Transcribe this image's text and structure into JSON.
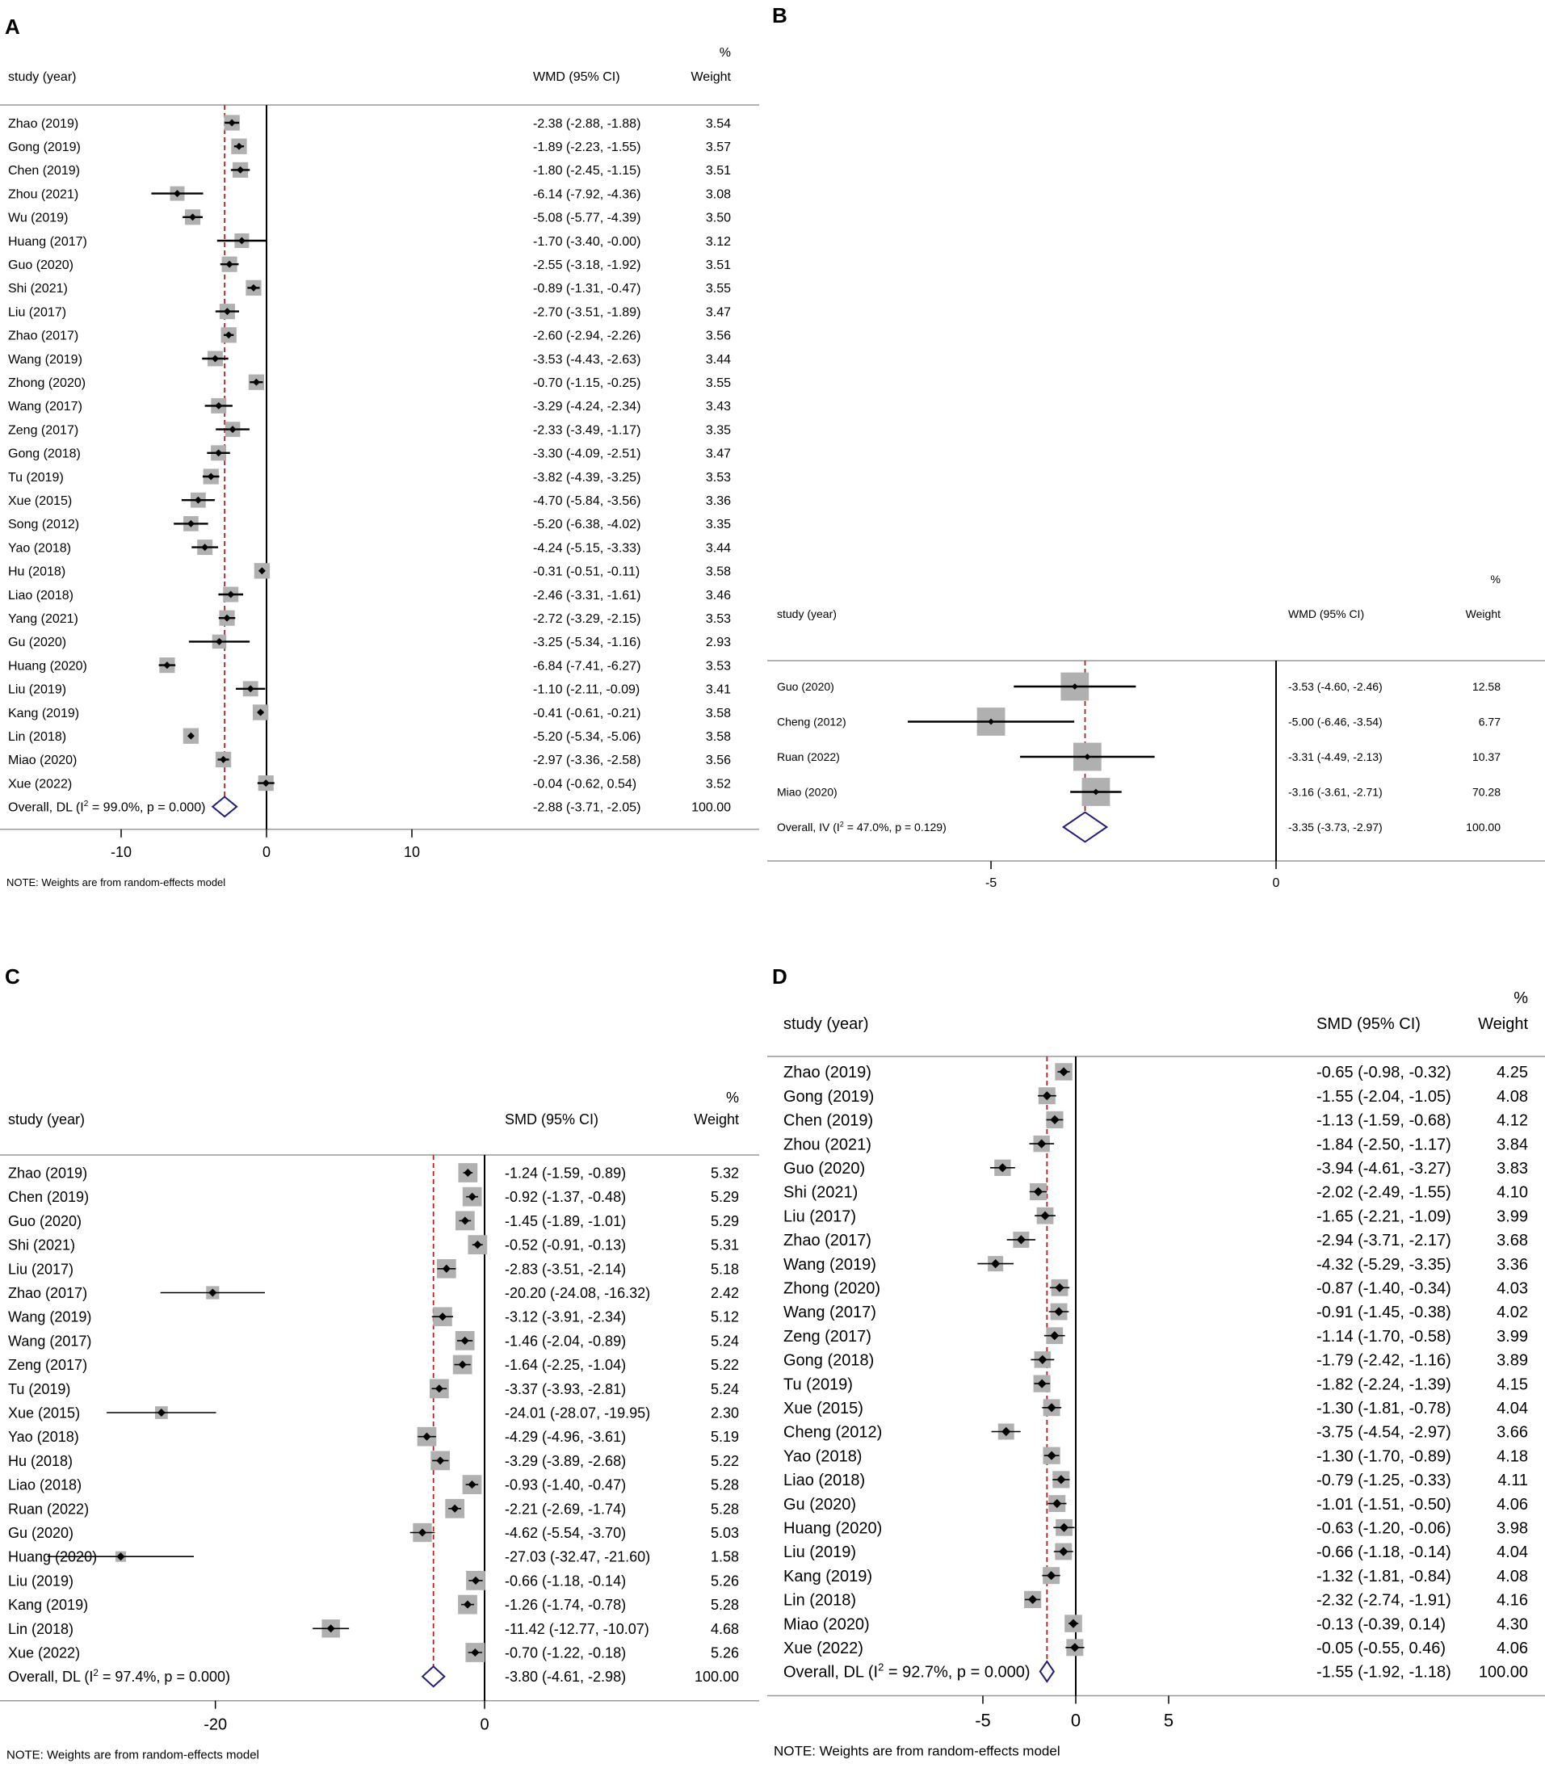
{
  "chart_data": [
    {
      "type": "forest",
      "panel_label": "A",
      "col_study": "study (year)",
      "col_effect": "WMD (95% CI)",
      "col_weight_pct": "%",
      "col_weight": "Weight",
      "note": "NOTE: Weights are from random-effects model",
      "xlim": [
        -17,
        17
      ],
      "xticks": [
        -10,
        0,
        10
      ],
      "xtick_labels": [
        "-10",
        "0",
        "10"
      ],
      "studies": [
        {
          "name": "Zhao (2019)",
          "est": -2.38,
          "lo": -2.88,
          "hi": -1.88,
          "ci": "-2.38 (-2.88, -1.88)",
          "weight": "3.54"
        },
        {
          "name": "Gong (2019)",
          "est": -1.89,
          "lo": -2.23,
          "hi": -1.55,
          "ci": "-1.89 (-2.23, -1.55)",
          "weight": "3.57"
        },
        {
          "name": "Chen (2019)",
          "est": -1.8,
          "lo": -2.45,
          "hi": -1.15,
          "ci": "-1.80 (-2.45, -1.15)",
          "weight": "3.51"
        },
        {
          "name": "Zhou (2021)",
          "est": -6.14,
          "lo": -7.92,
          "hi": -4.36,
          "ci": "-6.14 (-7.92, -4.36)",
          "weight": "3.08"
        },
        {
          "name": "Wu (2019)",
          "est": -5.08,
          "lo": -5.77,
          "hi": -4.39,
          "ci": "-5.08 (-5.77, -4.39)",
          "weight": "3.50"
        },
        {
          "name": "Huang (2017)",
          "est": -1.7,
          "lo": -3.4,
          "hi": -0.0,
          "ci": "-1.70 (-3.40, -0.00)",
          "weight": "3.12"
        },
        {
          "name": "Guo (2020)",
          "est": -2.55,
          "lo": -3.18,
          "hi": -1.92,
          "ci": "-2.55 (-3.18, -1.92)",
          "weight": "3.51"
        },
        {
          "name": "Shi (2021)",
          "est": -0.89,
          "lo": -1.31,
          "hi": -0.47,
          "ci": "-0.89 (-1.31, -0.47)",
          "weight": "3.55"
        },
        {
          "name": "Liu (2017)",
          "est": -2.7,
          "lo": -3.51,
          "hi": -1.89,
          "ci": "-2.70 (-3.51, -1.89)",
          "weight": "3.47"
        },
        {
          "name": "Zhao (2017)",
          "est": -2.6,
          "lo": -2.94,
          "hi": -2.26,
          "ci": "-2.60 (-2.94, -2.26)",
          "weight": "3.56"
        },
        {
          "name": "Wang (2019)",
          "est": -3.53,
          "lo": -4.43,
          "hi": -2.63,
          "ci": "-3.53 (-4.43, -2.63)",
          "weight": "3.44"
        },
        {
          "name": "Zhong (2020)",
          "est": -0.7,
          "lo": -1.15,
          "hi": -0.25,
          "ci": "-0.70 (-1.15, -0.25)",
          "weight": "3.55"
        },
        {
          "name": "Wang (2017)",
          "est": -3.29,
          "lo": -4.24,
          "hi": -2.34,
          "ci": "-3.29 (-4.24, -2.34)",
          "weight": "3.43"
        },
        {
          "name": "Zeng (2017)",
          "est": -2.33,
          "lo": -3.49,
          "hi": -1.17,
          "ci": "-2.33 (-3.49, -1.17)",
          "weight": "3.35"
        },
        {
          "name": "Gong (2018)",
          "est": -3.3,
          "lo": -4.09,
          "hi": -2.51,
          "ci": "-3.30 (-4.09, -2.51)",
          "weight": "3.47"
        },
        {
          "name": "Tu (2019)",
          "est": -3.82,
          "lo": -4.39,
          "hi": -3.25,
          "ci": "-3.82 (-4.39, -3.25)",
          "weight": "3.53"
        },
        {
          "name": "Xue (2015)",
          "est": -4.7,
          "lo": -5.84,
          "hi": -3.56,
          "ci": "-4.70 (-5.84, -3.56)",
          "weight": "3.36"
        },
        {
          "name": "Song (2012)",
          "est": -5.2,
          "lo": -6.38,
          "hi": -4.02,
          "ci": "-5.20 (-6.38, -4.02)",
          "weight": "3.35"
        },
        {
          "name": "Yao (2018)",
          "est": -4.24,
          "lo": -5.15,
          "hi": -3.33,
          "ci": "-4.24 (-5.15, -3.33)",
          "weight": "3.44"
        },
        {
          "name": "Hu (2018)",
          "est": -0.31,
          "lo": -0.51,
          "hi": -0.11,
          "ci": "-0.31 (-0.51, -0.11)",
          "weight": "3.58"
        },
        {
          "name": "Liao (2018)",
          "est": -2.46,
          "lo": -3.31,
          "hi": -1.61,
          "ci": "-2.46 (-3.31, -1.61)",
          "weight": "3.46"
        },
        {
          "name": "Yang (2021)",
          "est": -2.72,
          "lo": -3.29,
          "hi": -2.15,
          "ci": "-2.72 (-3.29, -2.15)",
          "weight": "3.53"
        },
        {
          "name": "Gu (2020)",
          "est": -3.25,
          "lo": -5.34,
          "hi": -1.16,
          "ci": "-3.25 (-5.34, -1.16)",
          "weight": "2.93"
        },
        {
          "name": "Huang (2020)",
          "est": -6.84,
          "lo": -7.41,
          "hi": -6.27,
          "ci": "-6.84 (-7.41, -6.27)",
          "weight": "3.53"
        },
        {
          "name": "Liu (2019)",
          "est": -1.1,
          "lo": -2.11,
          "hi": -0.09,
          "ci": "-1.10 (-2.11, -0.09)",
          "weight": "3.41"
        },
        {
          "name": "Kang (2019)",
          "est": -0.41,
          "lo": -0.61,
          "hi": -0.21,
          "ci": "-0.41 (-0.61, -0.21)",
          "weight": "3.58"
        },
        {
          "name": "Lin (2018)",
          "est": -5.2,
          "lo": -5.34,
          "hi": -5.06,
          "ci": "-5.20 (-5.34, -5.06)",
          "weight": "3.58"
        },
        {
          "name": "Miao (2020)",
          "est": -2.97,
          "lo": -3.36,
          "hi": -2.58,
          "ci": "-2.97 (-3.36, -2.58)",
          "weight": "3.56"
        },
        {
          "name": "Xue (2022)",
          "est": -0.04,
          "lo": -0.62,
          "hi": 0.54,
          "ci": "-0.04 (-0.62, 0.54)",
          "weight": "3.52"
        }
      ],
      "overall": {
        "label_pre": "Overall, DL (I",
        "sup": "2",
        "label_post": " = 99.0%, p = 0.000)",
        "est": -2.88,
        "lo": -3.71,
        "hi": -2.05,
        "ci": "-2.88 (-3.71, -2.05)",
        "weight": "100.00"
      }
    },
    {
      "type": "forest",
      "panel_label": "B",
      "col_study": "study (year)",
      "col_effect": "WMD (95% CI)",
      "col_weight_pct": "%",
      "col_weight": "Weight",
      "note": "",
      "xlim": [
        -8.5,
        0
      ],
      "xticks": [
        -5,
        0
      ],
      "xtick_labels": [
        "-5",
        "0"
      ],
      "studies": [
        {
          "name": "Guo (2020)",
          "est": -3.53,
          "lo": -4.6,
          "hi": -2.46,
          "ci": "-3.53 (-4.60, -2.46)",
          "weight": "12.58"
        },
        {
          "name": "Cheng (2012)",
          "est": -5.0,
          "lo": -6.46,
          "hi": -3.54,
          "ci": "-5.00 (-6.46, -3.54)",
          "weight": "6.77"
        },
        {
          "name": "Ruan (2022)",
          "est": -3.31,
          "lo": -4.49,
          "hi": -2.13,
          "ci": "-3.31 (-4.49, -2.13)",
          "weight": "10.37"
        },
        {
          "name": "Miao (2020)",
          "est": -3.16,
          "lo": -3.61,
          "hi": -2.71,
          "ci": "-3.16 (-3.61, -2.71)",
          "weight": "70.28"
        }
      ],
      "overall": {
        "label_pre": "Overall, IV (I",
        "sup": "2",
        "label_post": " = 47.0%, p = 0.129)",
        "est": -3.35,
        "lo": -3.73,
        "hi": -2.97,
        "ci": "-3.35 (-3.73, -2.97)",
        "weight": "100.00"
      }
    },
    {
      "type": "forest",
      "panel_label": "C",
      "col_study": "study (year)",
      "col_effect": "SMD (95% CI)",
      "col_weight_pct": "%",
      "col_weight": "Weight",
      "note": "NOTE: Weights are from random-effects model",
      "xlim": [
        -36,
        0
      ],
      "xticks": [
        -20,
        0
      ],
      "xtick_labels": [
        "-20",
        "0"
      ],
      "studies": [
        {
          "name": "Zhao (2019)",
          "est": -1.24,
          "lo": -1.59,
          "hi": -0.89,
          "ci": "-1.24 (-1.59, -0.89)",
          "weight": "5.32"
        },
        {
          "name": "Chen (2019)",
          "est": -0.92,
          "lo": -1.37,
          "hi": -0.48,
          "ci": "-0.92 (-1.37, -0.48)",
          "weight": "5.29"
        },
        {
          "name": "Guo (2020)",
          "est": -1.45,
          "lo": -1.89,
          "hi": -1.01,
          "ci": "-1.45 (-1.89, -1.01)",
          "weight": "5.29"
        },
        {
          "name": "Shi (2021)",
          "est": -0.52,
          "lo": -0.91,
          "hi": -0.13,
          "ci": "-0.52 (-0.91, -0.13)",
          "weight": "5.31"
        },
        {
          "name": "Liu (2017)",
          "est": -2.83,
          "lo": -3.51,
          "hi": -2.14,
          "ci": "-2.83 (-3.51, -2.14)",
          "weight": "5.18"
        },
        {
          "name": "Zhao (2017)",
          "est": -20.2,
          "lo": -24.08,
          "hi": -16.32,
          "ci": "-20.20 (-24.08, -16.32)",
          "weight": "2.42"
        },
        {
          "name": "Wang (2019)",
          "est": -3.12,
          "lo": -3.91,
          "hi": -2.34,
          "ci": "-3.12 (-3.91, -2.34)",
          "weight": "5.12"
        },
        {
          "name": "Wang (2017)",
          "est": -1.46,
          "lo": -2.04,
          "hi": -0.89,
          "ci": "-1.46 (-2.04, -0.89)",
          "weight": "5.24"
        },
        {
          "name": "Zeng (2017)",
          "est": -1.64,
          "lo": -2.25,
          "hi": -1.04,
          "ci": "-1.64 (-2.25, -1.04)",
          "weight": "5.22"
        },
        {
          "name": "Tu (2019)",
          "est": -3.37,
          "lo": -3.93,
          "hi": -2.81,
          "ci": "-3.37 (-3.93, -2.81)",
          "weight": "5.24"
        },
        {
          "name": "Xue (2015)",
          "est": -24.01,
          "lo": -28.07,
          "hi": -19.95,
          "ci": "-24.01 (-28.07, -19.95)",
          "weight": "2.30"
        },
        {
          "name": "Yao (2018)",
          "est": -4.29,
          "lo": -4.96,
          "hi": -3.61,
          "ci": "-4.29 (-4.96, -3.61)",
          "weight": "5.19"
        },
        {
          "name": "Hu (2018)",
          "est": -3.29,
          "lo": -3.89,
          "hi": -2.68,
          "ci": "-3.29 (-3.89, -2.68)",
          "weight": "5.22"
        },
        {
          "name": "Liao (2018)",
          "est": -0.93,
          "lo": -1.4,
          "hi": -0.47,
          "ci": "-0.93 (-1.40, -0.47)",
          "weight": "5.28"
        },
        {
          "name": "Ruan (2022)",
          "est": -2.21,
          "lo": -2.69,
          "hi": -1.74,
          "ci": "-2.21 (-2.69, -1.74)",
          "weight": "5.28"
        },
        {
          "name": "Gu (2020)",
          "est": -4.62,
          "lo": -5.54,
          "hi": -3.7,
          "ci": "-4.62 (-5.54, -3.70)",
          "weight": "5.03"
        },
        {
          "name": "Huang (2020)",
          "est": -27.03,
          "lo": -32.47,
          "hi": -21.6,
          "ci": "-27.03 (-32.47, -21.60)",
          "weight": "1.58"
        },
        {
          "name": "Liu (2019)",
          "est": -0.66,
          "lo": -1.18,
          "hi": -0.14,
          "ci": "-0.66 (-1.18, -0.14)",
          "weight": "5.26"
        },
        {
          "name": "Kang (2019)",
          "est": -1.26,
          "lo": -1.74,
          "hi": -0.78,
          "ci": "-1.26 (-1.74, -0.78)",
          "weight": "5.28"
        },
        {
          "name": "Lin (2018)",
          "est": -11.42,
          "lo": -12.77,
          "hi": -10.07,
          "ci": "-11.42 (-12.77, -10.07)",
          "weight": "4.68"
        },
        {
          "name": "Xue (2022)",
          "est": -0.7,
          "lo": -1.22,
          "hi": -0.18,
          "ci": "-0.70 (-1.22, -0.18)",
          "weight": "5.26"
        }
      ],
      "overall": {
        "label_pre": "Overall, DL (I",
        "sup": "2",
        "label_post": " = 97.4%, p = 0.000)",
        "est": -3.8,
        "lo": -4.61,
        "hi": -2.98,
        "ci": "-3.80 (-4.61, -2.98)",
        "weight": "100.00"
      }
    },
    {
      "type": "forest",
      "panel_label": "D",
      "col_study": "study (year)",
      "col_effect": "SMD (95% CI)",
      "col_weight_pct": "%",
      "col_weight": "Weight",
      "note": "NOTE: Weights are from random-effects model",
      "xlim": [
        -9,
        11
      ],
      "xticks": [
        -5,
        0,
        5
      ],
      "xtick_labels": [
        "-5",
        "0",
        "5"
      ],
      "studies": [
        {
          "name": "Zhao (2019)",
          "est": -0.65,
          "lo": -0.98,
          "hi": -0.32,
          "ci": "-0.65 (-0.98, -0.32)",
          "weight": "4.25"
        },
        {
          "name": "Gong (2019)",
          "est": -1.55,
          "lo": -2.04,
          "hi": -1.05,
          "ci": "-1.55 (-2.04, -1.05)",
          "weight": "4.08"
        },
        {
          "name": "Chen (2019)",
          "est": -1.13,
          "lo": -1.59,
          "hi": -0.68,
          "ci": "-1.13 (-1.59, -0.68)",
          "weight": "4.12"
        },
        {
          "name": "Zhou (2021)",
          "est": -1.84,
          "lo": -2.5,
          "hi": -1.17,
          "ci": "-1.84 (-2.50, -1.17)",
          "weight": "3.84"
        },
        {
          "name": "Guo (2020)",
          "est": -3.94,
          "lo": -4.61,
          "hi": -3.27,
          "ci": "-3.94 (-4.61, -3.27)",
          "weight": "3.83"
        },
        {
          "name": "Shi (2021)",
          "est": -2.02,
          "lo": -2.49,
          "hi": -1.55,
          "ci": "-2.02 (-2.49, -1.55)",
          "weight": "4.10"
        },
        {
          "name": "Liu (2017)",
          "est": -1.65,
          "lo": -2.21,
          "hi": -1.09,
          "ci": "-1.65 (-2.21, -1.09)",
          "weight": "3.99"
        },
        {
          "name": "Zhao (2017)",
          "est": -2.94,
          "lo": -3.71,
          "hi": -2.17,
          "ci": "-2.94 (-3.71, -2.17)",
          "weight": "3.68"
        },
        {
          "name": "Wang (2019)",
          "est": -4.32,
          "lo": -5.29,
          "hi": -3.35,
          "ci": "-4.32 (-5.29, -3.35)",
          "weight": "3.36"
        },
        {
          "name": "Zhong (2020)",
          "est": -0.87,
          "lo": -1.4,
          "hi": -0.34,
          "ci": "-0.87 (-1.40, -0.34)",
          "weight": "4.03"
        },
        {
          "name": "Wang (2017)",
          "est": -0.91,
          "lo": -1.45,
          "hi": -0.38,
          "ci": "-0.91 (-1.45, -0.38)",
          "weight": "4.02"
        },
        {
          "name": "Zeng (2017)",
          "est": -1.14,
          "lo": -1.7,
          "hi": -0.58,
          "ci": "-1.14 (-1.70, -0.58)",
          "weight": "3.99"
        },
        {
          "name": "Gong (2018)",
          "est": -1.79,
          "lo": -2.42,
          "hi": -1.16,
          "ci": "-1.79 (-2.42, -1.16)",
          "weight": "3.89"
        },
        {
          "name": "Tu (2019)",
          "est": -1.82,
          "lo": -2.24,
          "hi": -1.39,
          "ci": "-1.82 (-2.24, -1.39)",
          "weight": "4.15"
        },
        {
          "name": "Xue (2015)",
          "est": -1.3,
          "lo": -1.81,
          "hi": -0.78,
          "ci": "-1.30 (-1.81, -0.78)",
          "weight": "4.04"
        },
        {
          "name": "Cheng (2012)",
          "est": -3.75,
          "lo": -4.54,
          "hi": -2.97,
          "ci": "-3.75 (-4.54, -2.97)",
          "weight": "3.66"
        },
        {
          "name": "Yao (2018)",
          "est": -1.3,
          "lo": -1.7,
          "hi": -0.89,
          "ci": "-1.30 (-1.70, -0.89)",
          "weight": "4.18"
        },
        {
          "name": "Liao (2018)",
          "est": -0.79,
          "lo": -1.25,
          "hi": -0.33,
          "ci": "-0.79 (-1.25, -0.33)",
          "weight": "4.11"
        },
        {
          "name": "Gu (2020)",
          "est": -1.01,
          "lo": -1.51,
          "hi": -0.5,
          "ci": "-1.01 (-1.51, -0.50)",
          "weight": "4.06"
        },
        {
          "name": "Huang (2020)",
          "est": -0.63,
          "lo": -1.2,
          "hi": -0.06,
          "ci": "-0.63 (-1.20, -0.06)",
          "weight": "3.98"
        },
        {
          "name": "Liu (2019)",
          "est": -0.66,
          "lo": -1.18,
          "hi": -0.14,
          "ci": "-0.66 (-1.18, -0.14)",
          "weight": "4.04"
        },
        {
          "name": "Kang (2019)",
          "est": -1.32,
          "lo": -1.81,
          "hi": -0.84,
          "ci": "-1.32 (-1.81, -0.84)",
          "weight": "4.08"
        },
        {
          "name": "Lin (2018)",
          "est": -2.32,
          "lo": -2.74,
          "hi": -1.91,
          "ci": "-2.32 (-2.74, -1.91)",
          "weight": "4.16"
        },
        {
          "name": "Miao (2020)",
          "est": -0.13,
          "lo": -0.39,
          "hi": 0.14,
          "ci": "-0.13 (-0.39, 0.14)",
          "weight": "4.30"
        },
        {
          "name": "Xue (2022)",
          "est": -0.05,
          "lo": -0.55,
          "hi": 0.46,
          "ci": "-0.05 (-0.55, 0.46)",
          "weight": "4.06"
        }
      ],
      "overall": {
        "label_pre": "Overall, DL (I",
        "sup": "2",
        "label_post": " = 92.7%, p = 0.000)",
        "est": -1.55,
        "lo": -1.92,
        "hi": -1.18,
        "ci": "-1.55 (-1.92, -1.18)",
        "weight": "100.00"
      }
    }
  ],
  "colors": {
    "axis": "#000000",
    "pooled_line": "#b22222",
    "diamond": "#1f1f7a",
    "weight_box": "#b0b0b0",
    "divider": "#999999"
  }
}
